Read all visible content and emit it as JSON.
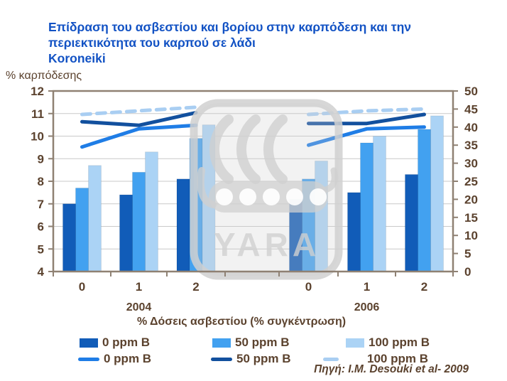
{
  "header": {
    "title_line1": "Επίδραση του ασβεστίου και βορίου στην καρπόδεση και την",
    "title_line2": "περιεκτικότητα του καρπού σε λάδι",
    "subtitle": "Koroneiki"
  },
  "source": {
    "text": "Πηγή: I.M. Desouki et al- 2009"
  },
  "watermark": {
    "text": "YARA"
  },
  "colors": {
    "background": "#ffffff",
    "title_text": "#1252c4",
    "axis_text": "#5b422e",
    "axis_frame": "#8f8173",
    "gridline": "#c9c9c9",
    "bar_0ppm": "#115cb8",
    "bar_50ppm": "#42a1f0",
    "bar_100ppm": "#abd3f5",
    "line_0ppm": "#1f7de6",
    "line_50ppm": "#12509e",
    "line_100ppm": "#a9cef2",
    "watermark_grey": "#d0d0d0"
  },
  "legend": {
    "bars": [
      {
        "label": "0 ppm B"
      },
      {
        "label": "50 ppm B"
      },
      {
        "label": "100 ppm B"
      }
    ],
    "lines": [
      {
        "label": "0 ppm B"
      },
      {
        "label": "50 ppm B"
      },
      {
        "label": "100 ppm B"
      }
    ]
  },
  "chart_data": {
    "type": "bar+line",
    "title": "Επίδραση του ασβεστίου και βορίου στην καρπόδεση και την περιεκτικότητα του καρπού σε λάδι",
    "subtitle": "Koroneiki",
    "x_axis": {
      "title": "%  Δόσεις ασβεστίου (% συγκέντρωση)",
      "group_labels": [
        "2004",
        "2006"
      ],
      "category_labels": [
        "0",
        "1",
        "2"
      ]
    },
    "y_left_axis": {
      "label": "% καρπόδεσης",
      "min": 4,
      "max": 12,
      "step": 1,
      "applies_to": "bars"
    },
    "y_right_axis": {
      "min": 0,
      "max": 50,
      "step": 5,
      "applies_to": "lines"
    },
    "grid": "horizontal",
    "legend_position": "bottom",
    "groups": [
      {
        "label": "2004",
        "categories": [
          "0",
          "1",
          "2"
        ],
        "bars": [
          {
            "name": "0 ppm B",
            "color": "bar_0ppm",
            "values": [
              7.0,
              7.4,
              8.1
            ]
          },
          {
            "name": "50 ppm B",
            "color": "bar_50ppm",
            "values": [
              7.7,
              8.4,
              9.9
            ]
          },
          {
            "name": "100 ppm B",
            "color": "bar_100ppm",
            "values": [
              8.7,
              9.3,
              10.5
            ]
          }
        ],
        "lines": [
          {
            "name": "0 ppm B",
            "color": "line_0ppm",
            "dashed": false,
            "values": [
              34.5,
              39.5,
              40.5
            ]
          },
          {
            "name": "50 ppm B",
            "color": "line_50ppm",
            "dashed": false,
            "values": [
              41.5,
              40.5,
              44.0
            ]
          },
          {
            "name": "100 ppm B",
            "color": "line_100ppm",
            "dashed": true,
            "values": [
              43.5,
              44.5,
              45.5
            ]
          }
        ]
      },
      {
        "label": "2006",
        "categories": [
          "0",
          "1",
          "2"
        ],
        "bars": [
          {
            "name": "0 ppm B",
            "color": "bar_0ppm",
            "values": [
              7.2,
              7.5,
              8.3
            ]
          },
          {
            "name": "50 ppm B",
            "color": "bar_50ppm",
            "values": [
              8.1,
              9.7,
              10.3
            ]
          },
          {
            "name": "100 ppm B",
            "color": "bar_100ppm",
            "values": [
              8.9,
              10.0,
              10.9
            ]
          }
        ],
        "lines": [
          {
            "name": "0 ppm B",
            "color": "line_0ppm",
            "dashed": false,
            "values": [
              35.0,
              39.5,
              40.0
            ]
          },
          {
            "name": "50 ppm B",
            "color": "line_50ppm",
            "dashed": false,
            "values": [
              41.0,
              41.0,
              43.5
            ]
          },
          {
            "name": "100 ppm B",
            "color": "line_100ppm",
            "dashed": true,
            "values": [
              43.5,
              44.5,
              45.0
            ]
          }
        ]
      }
    ]
  }
}
